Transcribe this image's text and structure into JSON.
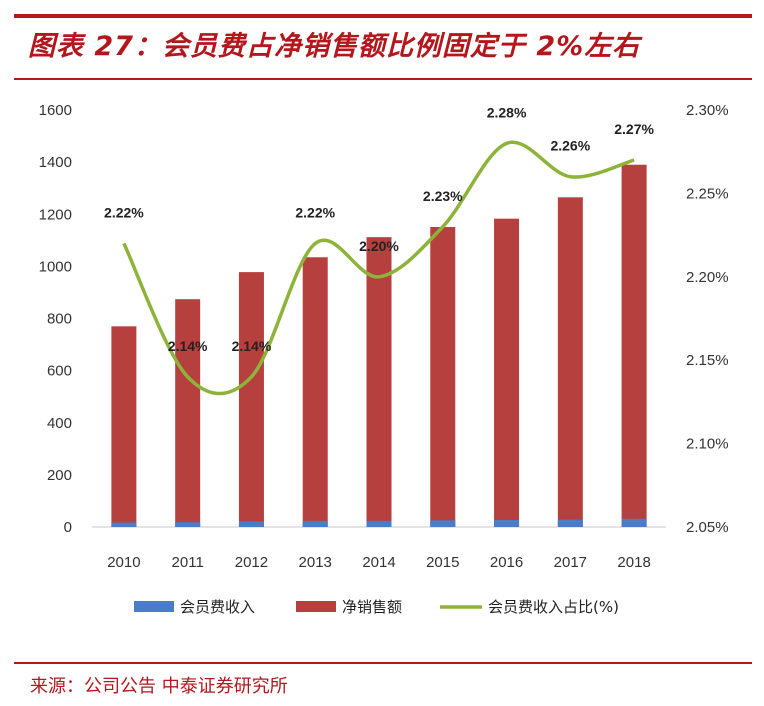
{
  "header": {
    "title": "图表 27：会员费占净销售额比例固定于 2%左右"
  },
  "footer": {
    "source": "来源：公司公告  中泰证券研究所"
  },
  "colors": {
    "accent": "#b4161c",
    "membership_bar": "#4a7cc9",
    "net_sales_bar": "#b5403e",
    "ratio_line": "#8db33a"
  },
  "chart_data": {
    "type": "bar",
    "categories": [
      "2010",
      "2011",
      "2012",
      "2013",
      "2014",
      "2015",
      "2016",
      "2017",
      "2018"
    ],
    "series": [
      {
        "name": "会员费收入",
        "type": "bar",
        "axis": "left",
        "values": [
          17.1,
          18.7,
          20.8,
          23.4,
          23.6,
          25.7,
          26.9,
          28.4,
          31.4
        ]
      },
      {
        "name": "净销售额",
        "type": "bar",
        "axis": "left",
        "values": [
          770,
          874,
          978,
          1035,
          1112,
          1151,
          1183,
          1265,
          1390
        ]
      },
      {
        "name": "会员费收入占比(%)",
        "type": "line",
        "axis": "right",
        "values": [
          2.22,
          2.14,
          2.14,
          2.22,
          2.2,
          2.23,
          2.28,
          2.26,
          2.27
        ],
        "labels": [
          "2.22%",
          "2.14%",
          "2.14%",
          "2.22%",
          "2.20%",
          "2.23%",
          "2.28%",
          "2.26%",
          "2.27%"
        ]
      }
    ],
    "y_left": {
      "min": 0,
      "max": 1600,
      "ticks": [
        "0",
        "200",
        "400",
        "600",
        "800",
        "1000",
        "1200",
        "1400",
        "1600"
      ]
    },
    "y_right": {
      "min": 2.05,
      "max": 2.3,
      "ticks": [
        "2.05%",
        "2.10%",
        "2.15%",
        "2.20%",
        "2.25%",
        "2.30%"
      ]
    },
    "grid": false,
    "legend_position": "bottom"
  }
}
